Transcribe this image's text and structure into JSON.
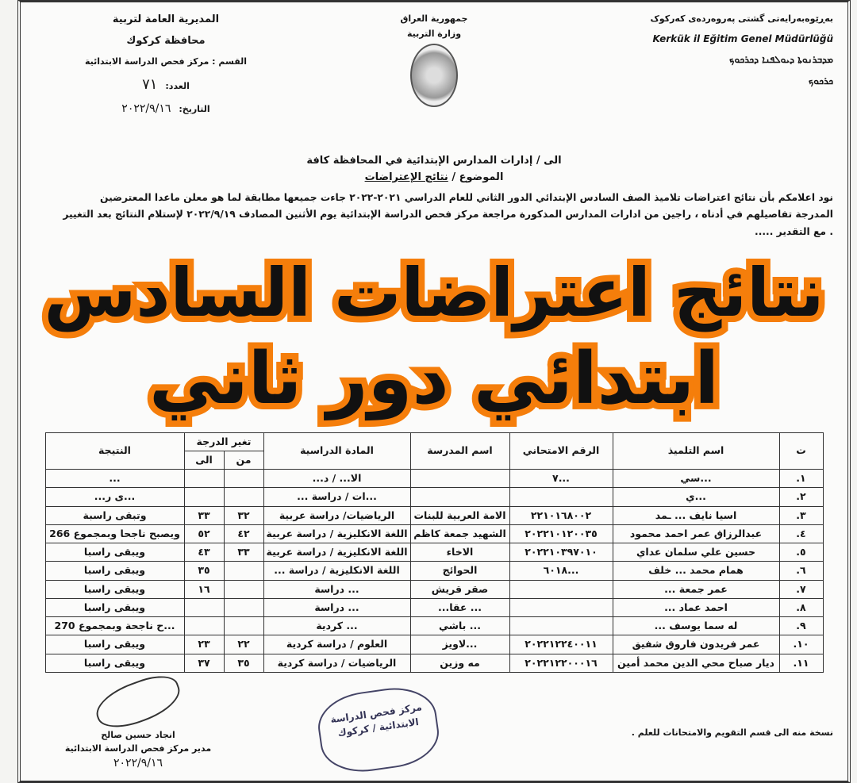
{
  "header": {
    "right": [
      "بەڕێوەبەرایەتی گشتی پەروەردەی کەرکوک",
      "Kerkük il Eğitim Genel Müdürlüğü",
      "ܡܕܒܪܢܘܬܐ ܕܝܘܠܦܢܐ ܕܟܪܟܘܟ",
      "ܟܪܟܘܟ"
    ],
    "center": [
      "جمهورية العراق",
      "وزارة التربية"
    ],
    "left": [
      "المديرية العامة لتربية",
      "محافظة كركوك",
      "القسم : مركز فحص الدراسة الابتدائية"
    ],
    "number_label": "العدد:",
    "number": "٧١",
    "date_label": "التاريخ:",
    "date": "٢٠٢٢/٩/١٦"
  },
  "to": "الى / إدارات المدارس الإبتدائية في المحافظة كافة",
  "subject_label": "الموضوع /",
  "subject": "نتائج الإعتراضات",
  "body": [
    "نود اعلامكم بأن نتائج اعتراضات تلاميذ الصف السادس الإبتدائي الدور الثاني للعام الدراسي ٢٠٢١-٢٠٢٢ جاءت جميعها مطابقة لما هو معلن ماعدا المعترضين",
    "المدرجة تفاصيلهم في أدناه ، راجين من ادارات المدارس المذكورة مراجعة مركز فحص الدراسة الإبتدائية يوم الأثنين المصادف ٢٠٢٢/٩/١٩ لإستلام النتائج بعد التغيير",
    ". مع التقدير ....."
  ],
  "table": {
    "headers": {
      "seq": "ت",
      "name": "اسم التلميذ",
      "exam_no": "الرقم الامتحاني",
      "school": "اسم المدرسة",
      "subject": "المادة الدراسية",
      "change": "تغير الدرجة",
      "from": "من",
      "to": "الى",
      "result": "النتيجة"
    },
    "rows": [
      [
        "١.",
        "...سي",
        "...٧",
        "",
        "الا... / د...",
        "",
        "",
        "..."
      ],
      [
        "٢.",
        "...ي",
        "",
        "",
        "...ات / دراسة ...",
        "",
        "",
        "...ى ر..."
      ],
      [
        "٣.",
        "اسيا نايف ... ـمد",
        "٢٢١٠١٦٨٠٠٢",
        "الامة العربية للبنات",
        "الرياضيات/ دراسة عربية",
        "٣٢",
        "٣٣",
        "وتبقى راسبة"
      ],
      [
        "٤.",
        "عبدالرزاق عمر احمد محمود",
        "٢٠٢٢١٠١٢٠٠٣٥",
        "الشهيد جمعة كاظم",
        "اللغة الانكليزية / دراسة عربية",
        "٤٢",
        "٥٢",
        "ويصبح ناجحا وبمجموع 266"
      ],
      [
        "٥.",
        "حسين علي سلمان عداي",
        "٢٠٢٢١٠٣٩٧٠١٠",
        "الاخاء",
        "اللغة الانكليزية / دراسة عربية",
        "٣٣",
        "٤٣",
        "ويبقى راسبا"
      ],
      [
        "٦.",
        "همام محمد ... خلف",
        "...٦٠١٨",
        "الحوائج",
        "اللغة الانكليزية / دراسة ...",
        "",
        "٣٥",
        "ويبقى راسبا"
      ],
      [
        "٧.",
        "عمر جمعة ...",
        "",
        "صقر قريش",
        "... دراسة",
        "",
        "١٦",
        "ويبقى راسبا"
      ],
      [
        "٨.",
        "احمد عماد ...",
        "",
        "... عقا...",
        "... دراسة",
        "",
        "",
        "ويبقى راسبا"
      ],
      [
        "٩.",
        "له سما يوسف ...",
        "",
        "... باشي",
        "... كردية",
        "",
        "",
        "...ح ناجحة وبمجموع 270"
      ],
      [
        "١٠.",
        "عمر فريدون فاروق شفيق",
        "٢٠٢٢١٢٢٤٠٠١١",
        "...لاويز",
        "العلوم / دراسة كردية",
        "٢٢",
        "٢٣",
        "ويبقى راسبا"
      ],
      [
        "١١.",
        "ديار صباح محي الدين محمد أمين",
        "٢٠٢٢١٢٢٠٠٠١٦",
        "مه وزين",
        "الرياضيات / دراسة كردية",
        "٣٥",
        "٣٧",
        "ويبقى راسبا"
      ]
    ]
  },
  "footer": {
    "copy": "نسخة منه الى قسم التقويم والامتحانات للعلم .",
    "signer": "انجاد حسين صالح",
    "signer_title": "مدير مركز فحص الدراسة الابتدائية",
    "signer_date": "٢٠٢٢/٩/١٦",
    "stamp": "مركز فحص الدراسة الابتدائية / كركوك"
  },
  "overlay": {
    "line1": "نتائج اعتراضات السادس",
    "line2": "ابتدائي دور ثاني",
    "stroke_color": "#f57e0b",
    "fill_color": "#111111"
  }
}
